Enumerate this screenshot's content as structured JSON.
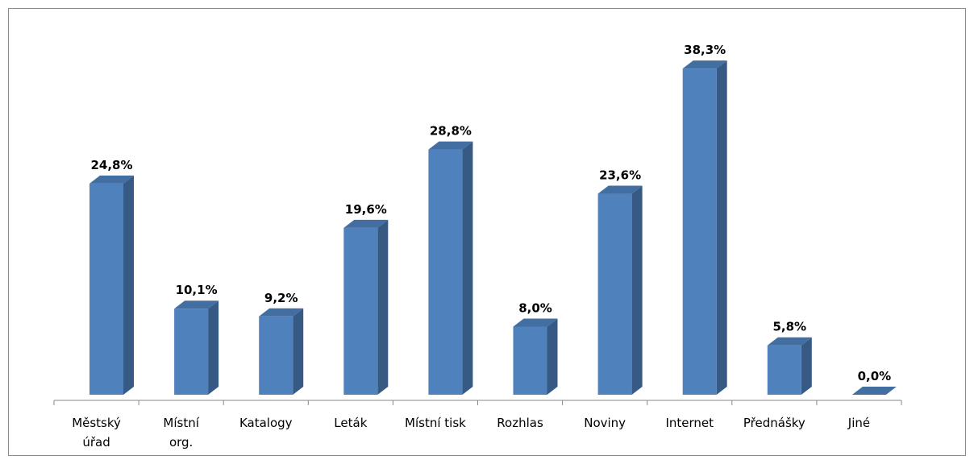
{
  "chart_data": {
    "type": "bar",
    "categories": [
      "Městský\núřad",
      "Místní\norg.",
      "Katalogy",
      "Leták",
      "Místní tisk",
      "Rozhlas",
      "Noviny",
      "Internet",
      "Přednášky",
      "Jiné"
    ],
    "values": [
      24.8,
      10.1,
      9.2,
      19.6,
      28.8,
      8.0,
      23.6,
      38.3,
      5.8,
      0.0
    ],
    "value_labels": [
      "24,8%",
      "10,1%",
      "9,2%",
      "19,6%",
      "28,8%",
      "8,0%",
      "23,6%",
      "38,3%",
      "5,8%",
      "0,0%"
    ],
    "color": "#4f81bd"
  }
}
